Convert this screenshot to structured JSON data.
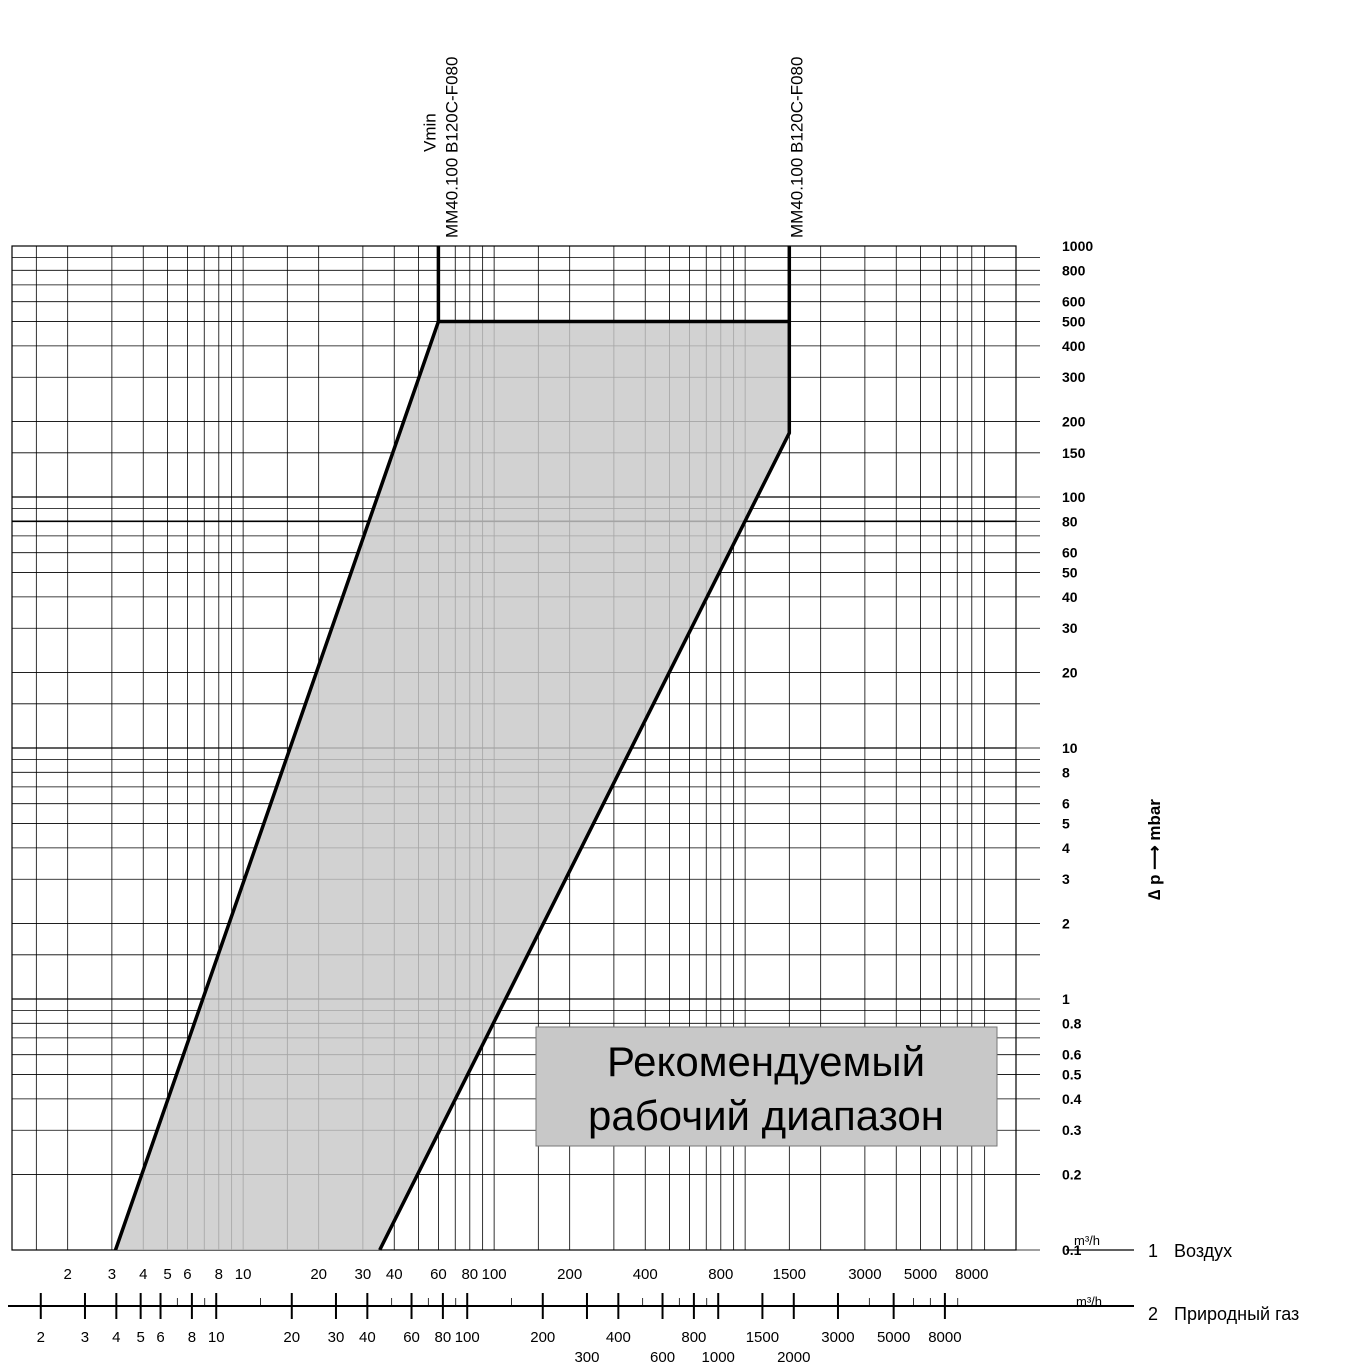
{
  "chart_data": {
    "type": "line",
    "x_scale": "log",
    "y_scale": "log",
    "xlim": [
      1.2,
      12000
    ],
    "ylim": [
      0.1,
      1000
    ],
    "ylabel": "∆ p ⟶ mbar",
    "y_ticks": [
      "1000",
      "800",
      "600",
      "500",
      "400",
      "300",
      "200",
      "150",
      "100",
      "80",
      "60",
      "50",
      "40",
      "30",
      "20",
      "10",
      "8",
      "6",
      "5",
      "4",
      "3",
      "2",
      "1",
      "0.8",
      "0.6",
      "0.5",
      "0.4",
      "0.3",
      "0.2",
      "0.1"
    ],
    "axis_air": {
      "unit": "m³/h",
      "number": "1",
      "name": "Воздух",
      "ticks": [
        "2",
        "3",
        "4",
        "5",
        "6",
        "8",
        "10",
        "20",
        "30",
        "40",
        "60",
        "80",
        "100",
        "200",
        "400",
        "800",
        "1500",
        "3000",
        "5000",
        "8000"
      ]
    },
    "axis_gas": {
      "unit": "m³/h",
      "number": "2",
      "name": "Природный газ",
      "ticks_row1": [
        "2",
        "3",
        "4",
        "5",
        "6",
        "8",
        "10",
        "20",
        "30",
        "40",
        "60",
        "80",
        "100",
        "200",
        "400",
        "800",
        "1500",
        "3000",
        "5000",
        "8000"
      ],
      "ticks_row2": [
        "300",
        "600",
        "1000",
        "2000"
      ]
    },
    "series": [
      {
        "name": "Vmin MM40.100 B120C-F080",
        "label_line1": "Vmin",
        "label_line2": "MM40.100 B120C-F080",
        "points": [
          [
            3.1,
            0.1
          ],
          [
            60,
            500
          ],
          [
            60,
            1000
          ]
        ]
      },
      {
        "name": "MM40.100 B120C-F080",
        "label_line1": "",
        "label_line2": "MM40.100 B120C-F080",
        "points": [
          [
            35,
            0.1
          ],
          [
            1500,
            180
          ],
          [
            1500,
            1000
          ]
        ]
      }
    ],
    "region": {
      "label_line1": "Рекомендуемый",
      "label_line2": "рабочий диапазон",
      "fill": "#c8c8c8",
      "boundary": [
        [
          3.1,
          0.1
        ],
        [
          60,
          500
        ],
        [
          1500,
          500
        ],
        [
          1500,
          180
        ],
        [
          35,
          0.1
        ]
      ]
    },
    "colors": {
      "line": "#000000",
      "grid": "#000000",
      "region": "#c8c8c8",
      "label_box": "#c8c8c8"
    }
  }
}
